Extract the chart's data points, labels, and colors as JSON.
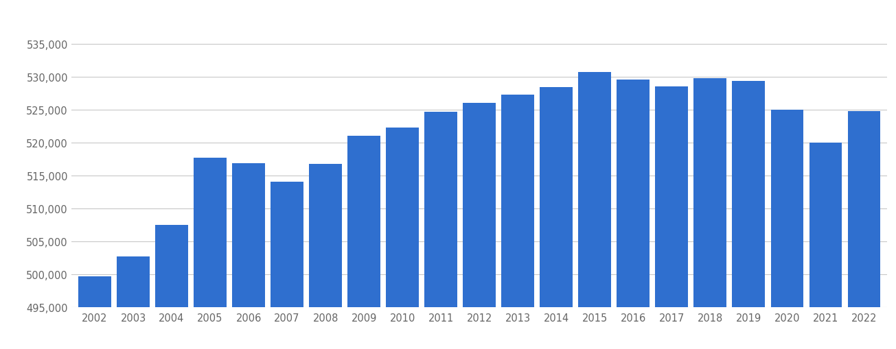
{
  "years": [
    2002,
    2003,
    2004,
    2005,
    2006,
    2007,
    2008,
    2009,
    2010,
    2011,
    2012,
    2013,
    2014,
    2015,
    2016,
    2017,
    2018,
    2019,
    2020,
    2021,
    2022
  ],
  "values": [
    499700,
    502700,
    507500,
    517700,
    516900,
    514000,
    516700,
    521000,
    522300,
    524700,
    526000,
    527300,
    528400,
    530700,
    529600,
    528500,
    529800,
    529400,
    525000,
    520000,
    524800
  ],
  "bar_color": "#2f6fcf",
  "ylim": [
    495000,
    537500
  ],
  "yticks": [
    495000,
    500000,
    505000,
    510000,
    515000,
    520000,
    525000,
    530000,
    535000
  ],
  "background_color": "#ffffff",
  "grid_color": "#c8c8c8",
  "tick_label_color": "#666666",
  "bar_width": 0.85
}
